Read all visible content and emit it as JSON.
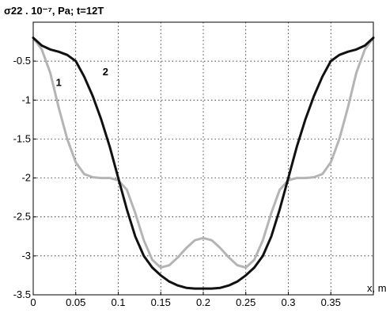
{
  "chart_data": {
    "type": "line",
    "title": "σ22 . 10⁻⁷, Pa;  t=12T",
    "xlabel": "x, m",
    "ylabel": "",
    "xlim": [
      0,
      0.4
    ],
    "ylim": [
      -3.5,
      0
    ],
    "grid": true,
    "xticks": [
      0,
      0.05,
      0.1,
      0.15,
      0.2,
      0.25,
      0.3,
      0.35
    ],
    "xtick_labels": [
      "0",
      "0.05",
      "0.1",
      "0.15",
      "0.2",
      "0.25",
      "0.3",
      "0.35"
    ],
    "yticks": [
      -0.5,
      -1,
      -1.5,
      -2,
      -2.5,
      -3,
      -3.5
    ],
    "ytick_labels": [
      "-0.5",
      "-1",
      "-1.5",
      "-2",
      "-2.5",
      "-3",
      "-3.5"
    ],
    "series": [
      {
        "name": "1",
        "color": "#b4b4b4",
        "x": [
          0.0,
          0.01,
          0.02,
          0.03,
          0.04,
          0.05,
          0.06,
          0.07,
          0.08,
          0.09,
          0.1,
          0.11,
          0.12,
          0.13,
          0.14,
          0.15,
          0.16,
          0.17,
          0.18,
          0.19,
          0.2,
          0.21,
          0.22,
          0.23,
          0.24,
          0.25,
          0.26,
          0.27,
          0.28,
          0.29,
          0.3,
          0.31,
          0.32,
          0.33,
          0.34,
          0.35,
          0.36,
          0.37,
          0.38,
          0.39,
          0.4
        ],
        "y": [
          -0.2,
          -0.35,
          -0.65,
          -1.1,
          -1.5,
          -1.8,
          -1.95,
          -1.99,
          -2.0,
          -2.0,
          -2.03,
          -2.15,
          -2.45,
          -2.8,
          -3.05,
          -3.15,
          -3.12,
          -3.02,
          -2.9,
          -2.8,
          -2.77,
          -2.8,
          -2.9,
          -3.02,
          -3.12,
          -3.15,
          -3.05,
          -2.8,
          -2.45,
          -2.15,
          -2.03,
          -2.0,
          -2.0,
          -1.99,
          -1.95,
          -1.8,
          -1.5,
          -1.1,
          -0.65,
          -0.35,
          -0.2
        ]
      },
      {
        "name": "2",
        "color": "#111111",
        "x": [
          0.0,
          0.01,
          0.02,
          0.03,
          0.04,
          0.05,
          0.06,
          0.07,
          0.08,
          0.09,
          0.1,
          0.11,
          0.12,
          0.13,
          0.14,
          0.15,
          0.16,
          0.17,
          0.18,
          0.19,
          0.2,
          0.21,
          0.22,
          0.23,
          0.24,
          0.25,
          0.26,
          0.27,
          0.28,
          0.29,
          0.3,
          0.31,
          0.32,
          0.33,
          0.34,
          0.35,
          0.36,
          0.37,
          0.38,
          0.39,
          0.4
        ],
        "y": [
          -0.2,
          -0.3,
          -0.35,
          -0.38,
          -0.42,
          -0.5,
          -0.7,
          -0.95,
          -1.25,
          -1.6,
          -2.0,
          -2.4,
          -2.75,
          -3.0,
          -3.15,
          -3.25,
          -3.33,
          -3.38,
          -3.41,
          -3.42,
          -3.42,
          -3.42,
          -3.41,
          -3.38,
          -3.33,
          -3.25,
          -3.15,
          -3.0,
          -2.75,
          -2.4,
          -2.0,
          -1.6,
          -1.25,
          -0.95,
          -0.7,
          -0.5,
          -0.42,
          -0.38,
          -0.35,
          -0.3,
          -0.2
        ]
      }
    ],
    "annotations": [
      {
        "text": "1",
        "x": 0.03,
        "y": -0.82
      },
      {
        "text": "2",
        "x": 0.085,
        "y": -0.68
      }
    ]
  }
}
